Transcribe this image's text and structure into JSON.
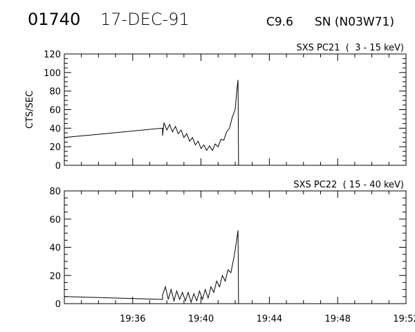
{
  "header": {
    "event_id": "01740",
    "date": "17-DEC-91",
    "flare_class": "C9.6",
    "location": "SN (N03W71)"
  },
  "colors": {
    "line": "#000000",
    "background": "#ffffff"
  },
  "chart_data": [
    {
      "type": "line",
      "title": "SXS PC21  (  3 - 15 keV)",
      "ylabel": "CTS/SEC",
      "xlabel": "",
      "x_unit": "UT time (HH:MM)",
      "xlim": [
        "19:32",
        "19:52"
      ],
      "ylim": [
        0,
        120
      ],
      "yticks": [
        0,
        20,
        40,
        60,
        80,
        100,
        120
      ],
      "x_tick_labels": [],
      "series": [
        {
          "points": [
            [
              "19:32:00",
              30
            ],
            [
              "19:37:45",
              40
            ],
            [
              "19:37:45",
              32
            ],
            [
              "19:37:50",
              46
            ],
            [
              "19:38:00",
              38
            ],
            [
              "19:38:10",
              44
            ],
            [
              "19:38:20",
              36
            ],
            [
              "19:38:30",
              42
            ],
            [
              "19:38:40",
              34
            ],
            [
              "19:38:50",
              38
            ],
            [
              "19:39:00",
              30
            ],
            [
              "19:39:10",
              34
            ],
            [
              "19:39:20",
              26
            ],
            [
              "19:39:30",
              30
            ],
            [
              "19:39:40",
              22
            ],
            [
              "19:39:50",
              26
            ],
            [
              "19:40:00",
              18
            ],
            [
              "19:40:10",
              22
            ],
            [
              "19:40:20",
              16
            ],
            [
              "19:40:30",
              21
            ],
            [
              "19:40:40",
              16
            ],
            [
              "19:40:50",
              23
            ],
            [
              "19:41:00",
              20
            ],
            [
              "19:41:10",
              28
            ],
            [
              "19:41:20",
              27
            ],
            [
              "19:41:30",
              36
            ],
            [
              "19:41:40",
              40
            ],
            [
              "19:41:50",
              52
            ],
            [
              "19:42:00",
              60
            ],
            [
              "19:42:05",
              78
            ],
            [
              "19:42:10",
              92
            ],
            [
              "19:42:12",
              0
            ]
          ]
        }
      ]
    },
    {
      "type": "line",
      "title": "SXS PC22  ( 15 - 40 keV)",
      "ylabel": "",
      "xlabel": "",
      "x_unit": "UT time (HH:MM)",
      "xlim": [
        "19:32",
        "19:52"
      ],
      "ylim": [
        0,
        80
      ],
      "yticks": [
        0,
        20,
        40,
        60,
        80
      ],
      "x_tick_labels": [
        "19:36",
        "19:40",
        "19:44",
        "19:48",
        "19:52"
      ],
      "series": [
        {
          "points": [
            [
              "19:32:00",
              5
            ],
            [
              "19:37:45",
              3
            ],
            [
              "19:37:45",
              6
            ],
            [
              "19:37:55",
              12
            ],
            [
              "19:38:05",
              3
            ],
            [
              "19:38:15",
              10
            ],
            [
              "19:38:25",
              2
            ],
            [
              "19:38:35",
              9
            ],
            [
              "19:38:45",
              3
            ],
            [
              "19:38:55",
              8
            ],
            [
              "19:39:05",
              2
            ],
            [
              "19:39:15",
              8
            ],
            [
              "19:39:25",
              1
            ],
            [
              "19:39:35",
              7
            ],
            [
              "19:39:45",
              2
            ],
            [
              "19:39:55",
              9
            ],
            [
              "19:40:05",
              3
            ],
            [
              "19:40:15",
              10
            ],
            [
              "19:40:25",
              4
            ],
            [
              "19:40:35",
              12
            ],
            [
              "19:40:45",
              8
            ],
            [
              "19:40:55",
              16
            ],
            [
              "19:41:05",
              12
            ],
            [
              "19:41:15",
              20
            ],
            [
              "19:41:25",
              16
            ],
            [
              "19:41:35",
              24
            ],
            [
              "19:41:45",
              22
            ],
            [
              "19:41:55",
              32
            ],
            [
              "19:42:00",
              38
            ],
            [
              "19:42:05",
              45
            ],
            [
              "19:42:10",
              52
            ],
            [
              "19:42:12",
              0
            ]
          ]
        }
      ]
    }
  ]
}
